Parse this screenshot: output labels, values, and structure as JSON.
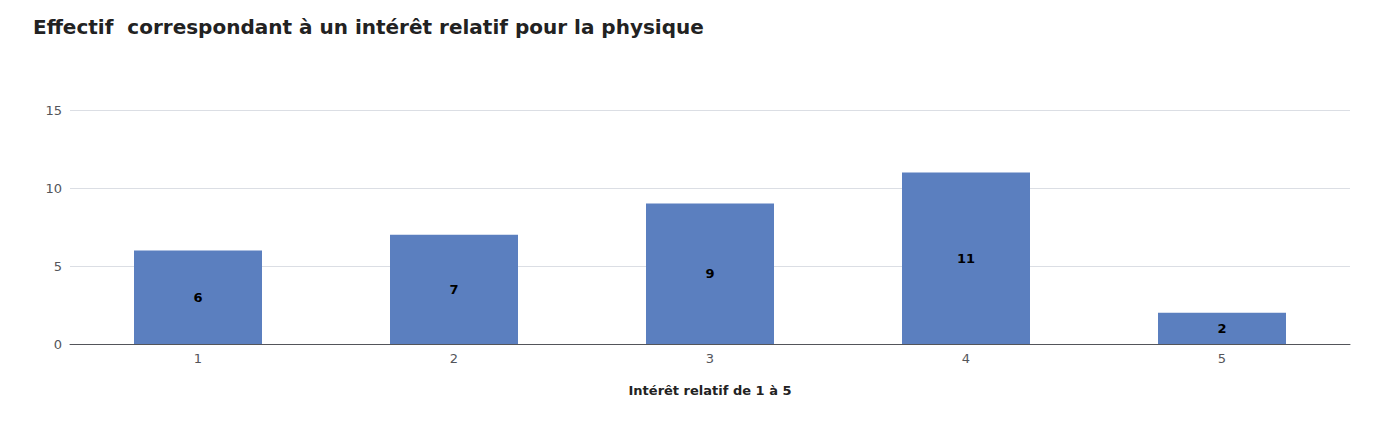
{
  "chart_data": {
    "type": "bar",
    "title": "Effectif  correspondant à un intérêt relatif pour la physique",
    "xlabel": "Intérêt relatif de 1 à 5",
    "categories": [
      1,
      2,
      3,
      4,
      5
    ],
    "values": [
      6,
      7,
      9,
      11,
      2
    ],
    "color": "#5B7FBF",
    "ylim": [
      0,
      15
    ],
    "yticks": [
      0,
      5,
      10,
      15
    ],
    "grid": true,
    "data_labels": true
  }
}
